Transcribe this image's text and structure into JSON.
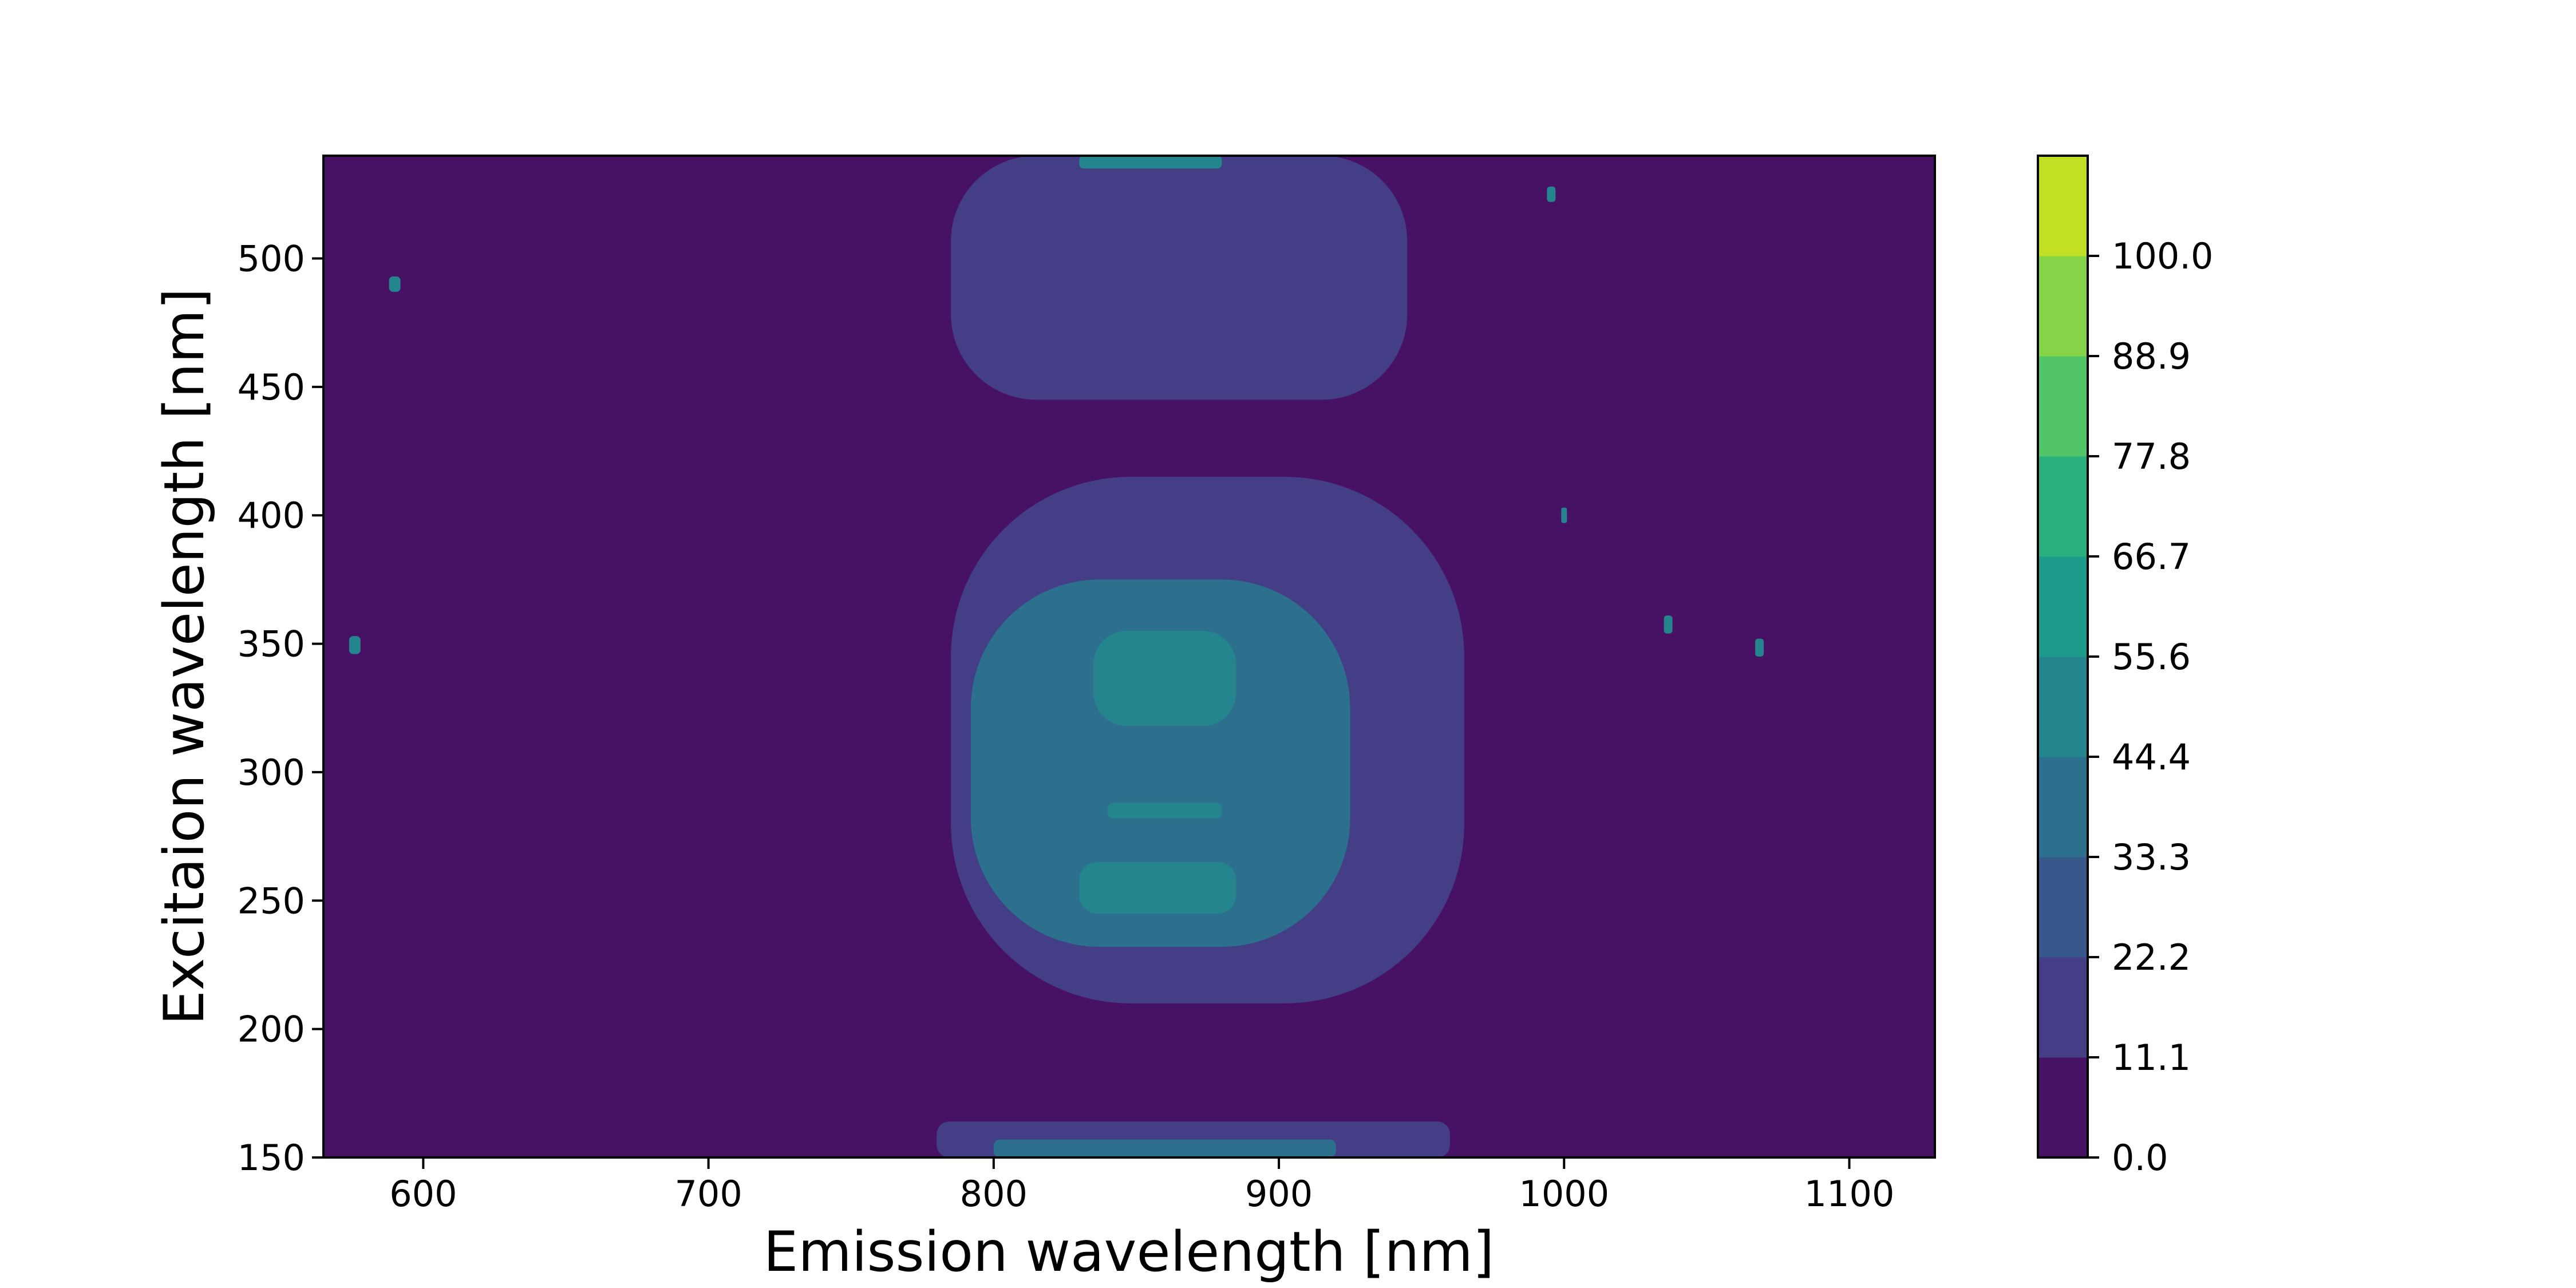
{
  "chart_data": {
    "type": "contour",
    "title": "",
    "xlabel": "Emission wavelength [nm]",
    "ylabel": "Excitaion wavelength [nm]",
    "xlim": [
      565,
      1130
    ],
    "ylim": [
      150,
      540
    ],
    "xticks": [
      600,
      700,
      800,
      900,
      1000,
      1100
    ],
    "yticks": [
      150,
      200,
      250,
      300,
      350,
      400,
      450,
      500
    ],
    "grid": false,
    "colorbar": {
      "levels": [
        0.0,
        11.1,
        22.2,
        33.3,
        44.4,
        55.6,
        66.7,
        77.8,
        88.9,
        100.0
      ],
      "tick_labels": [
        "0.0",
        "11.1",
        "22.2",
        "33.3",
        "44.4",
        "55.6",
        "66.7",
        "77.8",
        "88.9",
        "100.0"
      ],
      "colors": [
        "#471164",
        "#433e85",
        "#38588c",
        "#2d708e",
        "#25858e",
        "#1e9b8a",
        "#2ab07f",
        "#52c569",
        "#86d549",
        "#c2df23"
      ]
    },
    "regions": [
      {
        "name": "upper band",
        "band_index": 1,
        "x_range": [
          785,
          945
        ],
        "y_range": [
          445,
          540
        ]
      },
      {
        "name": "upper band top core",
        "band_index": 4,
        "x_range": [
          830,
          880
        ],
        "y_range": [
          535,
          540
        ]
      },
      {
        "name": "middle region outer",
        "band_index": 1,
        "x_range": [
          785,
          965
        ],
        "y_range": [
          210,
          415
        ]
      },
      {
        "name": "middle region inner",
        "band_index": 3,
        "x_range": [
          792,
          925
        ],
        "y_range": [
          232,
          375
        ]
      },
      {
        "name": "core at 335",
        "band_index": 4,
        "x_range": [
          835,
          885
        ],
        "y_range": [
          318,
          355
        ]
      },
      {
        "name": "core at 285",
        "band_index": 4,
        "x_range": [
          840,
          880
        ],
        "y_range": [
          282,
          288
        ]
      },
      {
        "name": "core at 255",
        "band_index": 4,
        "x_range": [
          830,
          885
        ],
        "y_range": [
          245,
          265
        ]
      },
      {
        "name": "bottom outer",
        "band_index": 1,
        "x_range": [
          780,
          960
        ],
        "y_range": [
          150,
          164
        ]
      },
      {
        "name": "bottom inner",
        "band_index": 3,
        "x_range": [
          800,
          920
        ],
        "y_range": [
          150,
          157
        ]
      },
      {
        "name": "speck",
        "band_index": 4,
        "x_range": [
          588,
          592
        ],
        "y_range": [
          487,
          493
        ]
      },
      {
        "name": "speck",
        "band_index": 4,
        "x_range": [
          574,
          578
        ],
        "y_range": [
          346,
          353
        ]
      },
      {
        "name": "speck",
        "band_index": 4,
        "x_range": [
          994,
          997
        ],
        "y_range": [
          522,
          528
        ]
      },
      {
        "name": "speck",
        "band_index": 4,
        "x_range": [
          999,
          1001
        ],
        "y_range": [
          397,
          403
        ]
      },
      {
        "name": "speck",
        "band_index": 4,
        "x_range": [
          1035,
          1038
        ],
        "y_range": [
          354,
          361
        ]
      },
      {
        "name": "speck",
        "band_index": 4,
        "x_range": [
          1067,
          1070
        ],
        "y_range": [
          345,
          352
        ]
      }
    ]
  }
}
